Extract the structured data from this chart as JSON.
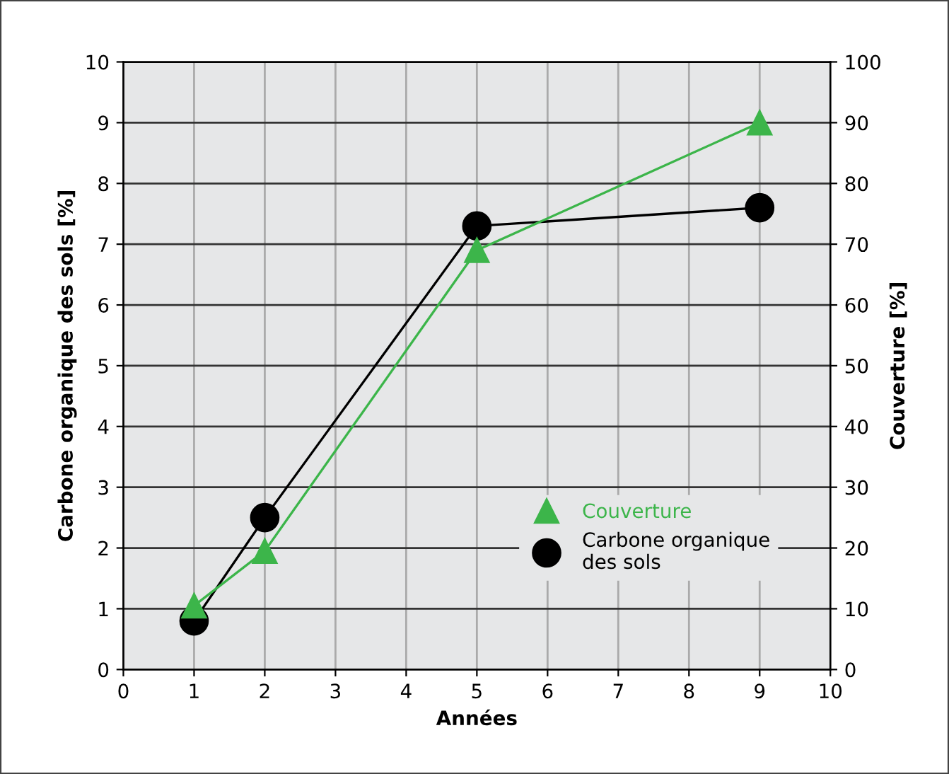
{
  "chart_data": {
    "type": "line",
    "xlabel": "Années",
    "ylabel": "Carbone organique des sols [%]",
    "y2label": "Couverture [%]",
    "x": [
      1,
      2,
      5,
      9
    ],
    "series": [
      {
        "name": "Couverture",
        "color": "#3cb54a",
        "values": [
          10.5,
          19.5,
          69,
          90
        ],
        "axis": "y2",
        "marker": "triangle"
      },
      {
        "name": "Carbone organique\ndes sols",
        "color": "#000000",
        "values": [
          0.8,
          2.5,
          7.3,
          7.6
        ],
        "marker": "circle"
      }
    ],
    "xlim": [
      0,
      10
    ],
    "xticks": [
      0,
      1,
      2,
      3,
      4,
      5,
      6,
      7,
      8,
      9,
      10
    ],
    "ylim": [
      0,
      10
    ],
    "yticks": [
      0,
      1,
      2,
      3,
      4,
      5,
      6,
      7,
      8,
      9,
      10
    ],
    "y2lim": [
      0,
      100
    ],
    "y2ticks": [
      0,
      10,
      20,
      30,
      40,
      50,
      60,
      70,
      80,
      90,
      100
    ],
    "grid": true,
    "legend": "bottom right",
    "line_style": "solid"
  }
}
